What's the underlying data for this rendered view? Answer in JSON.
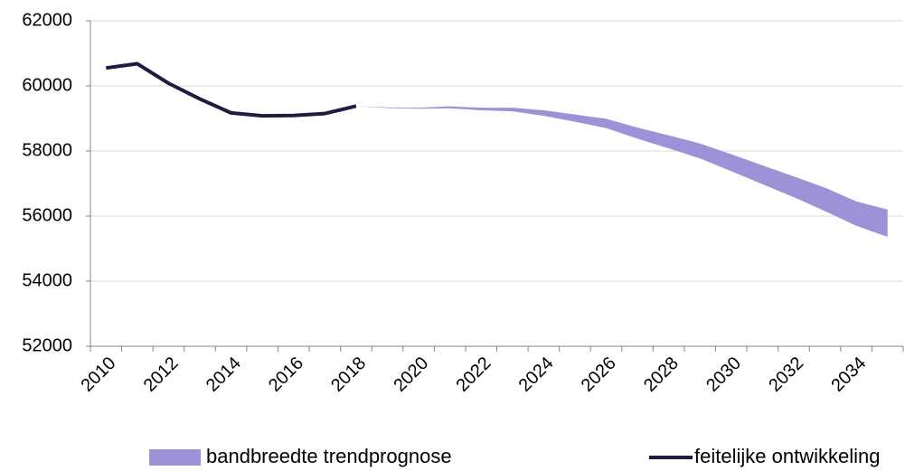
{
  "chart_data": {
    "type": "line",
    "categories": [
      "2010",
      null,
      "2012",
      null,
      "2014",
      null,
      "2016",
      null,
      "2018",
      null,
      "2020",
      null,
      "2022",
      null,
      "2024",
      null,
      "2026",
      null,
      "2028",
      null,
      "2030",
      null,
      "2032",
      null,
      "2034",
      null
    ],
    "series": [
      {
        "name": "bandbreedte trendprognose",
        "kind": "band",
        "color": "#9e91d8",
        "low": [
          null,
          null,
          null,
          null,
          null,
          null,
          null,
          null,
          59380,
          59320,
          59300,
          59310,
          59250,
          59220,
          59080,
          58900,
          58700,
          58380,
          58080,
          57770,
          57380,
          56980,
          56580,
          56150,
          55700,
          55360
        ],
        "high": [
          null,
          null,
          null,
          null,
          null,
          null,
          null,
          null,
          59380,
          59340,
          59330,
          59370,
          59330,
          59330,
          59250,
          59120,
          58990,
          58720,
          58480,
          58230,
          57900,
          57560,
          57220,
          56870,
          56450,
          56200
        ]
      },
      {
        "name": "feitelijke ontwikkeling",
        "kind": "line",
        "color": "#231942",
        "values": [
          60550,
          60680,
          60080,
          59600,
          59170,
          59080,
          59090,
          59150,
          59380,
          null,
          null,
          null,
          null,
          null,
          null,
          null,
          null,
          null,
          null,
          null,
          null,
          null,
          null,
          null,
          null,
          null
        ]
      }
    ],
    "ylim": [
      52000,
      62000
    ],
    "yticks": [
      52000,
      54000,
      56000,
      58000,
      60000,
      62000
    ],
    "grid": true
  }
}
